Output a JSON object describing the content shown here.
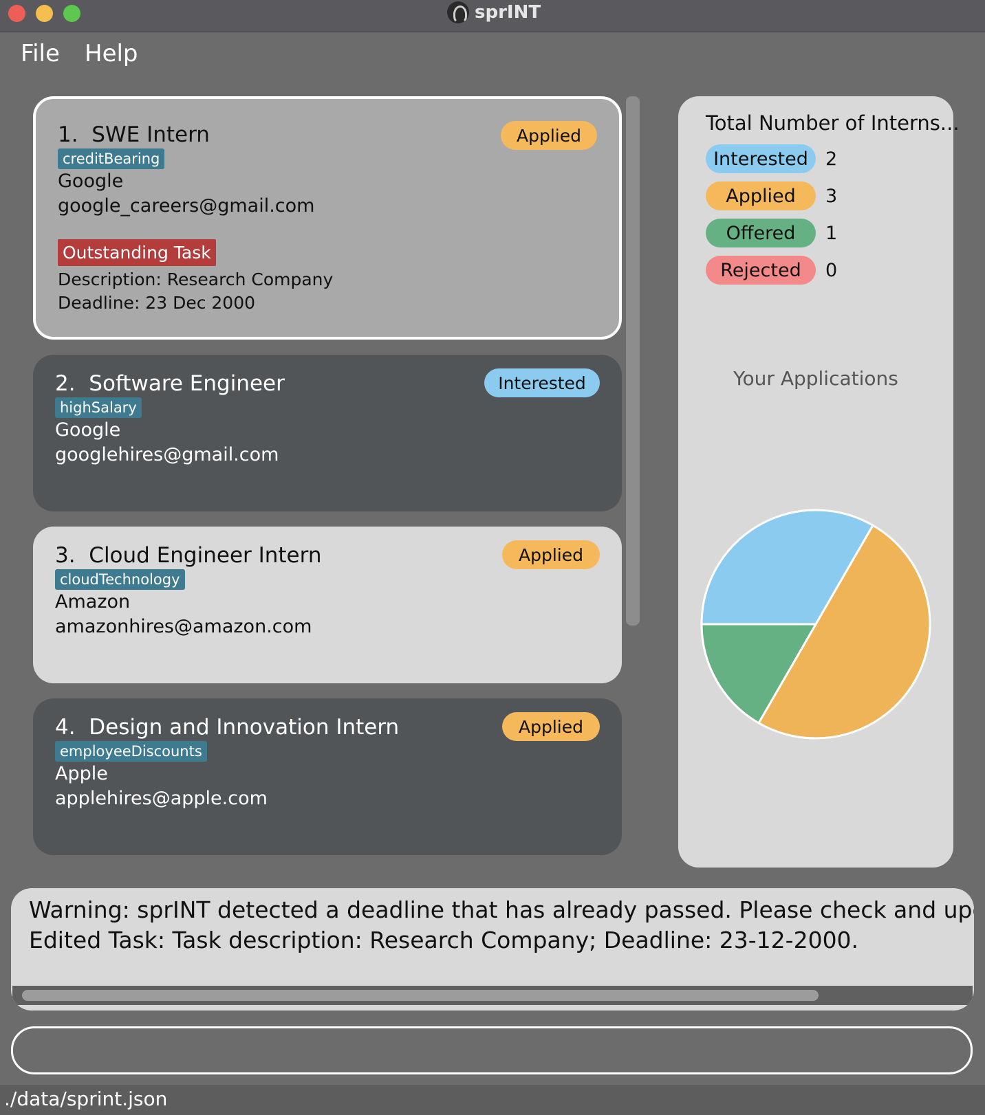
{
  "window": {
    "title": "sprINT"
  },
  "menu": {
    "file": "File",
    "help": "Help"
  },
  "applications": [
    {
      "index": "1.",
      "role": "SWE Intern",
      "tag": "creditBearing",
      "company": "Google",
      "email": "google_careers@gmail.com",
      "status": "Applied",
      "task": {
        "badge": "Outstanding Task",
        "description": "Description: Research Company",
        "deadline": "Deadline: 23 Dec 2000"
      }
    },
    {
      "index": "2.",
      "role": "Software Engineer",
      "tag": "highSalary",
      "company": "Google",
      "email": "googlehires@gmail.com",
      "status": "Interested"
    },
    {
      "index": "3.",
      "role": "Cloud Engineer Intern",
      "tag": "cloudTechnology",
      "company": "Amazon",
      "email": "amazonhires@amazon.com",
      "status": "Applied"
    },
    {
      "index": "4.",
      "role": "Design and Innovation Intern",
      "tag": "employeeDiscounts",
      "company": "Apple",
      "email": "applehires@apple.com",
      "status": "Applied"
    }
  ],
  "stats": {
    "title": "Total Number of Interns...",
    "rows": [
      {
        "label": "Interested",
        "count": "2"
      },
      {
        "label": "Applied",
        "count": "3"
      },
      {
        "label": "Offered",
        "count": "1"
      },
      {
        "label": "Rejected",
        "count": "0"
      }
    ],
    "chart_title": "Your Applications"
  },
  "chart_data": {
    "type": "pie",
    "title": "Your Applications",
    "categories": [
      "Interested",
      "Applied",
      "Offered",
      "Rejected"
    ],
    "values": [
      2,
      3,
      1,
      0
    ],
    "colors": [
      "#8ccbf0",
      "#f0b458",
      "#65b184",
      "#f4898a"
    ]
  },
  "result": {
    "line1": "Warning: sprINT detected a deadline that has already passed. Please check and update task det",
    "line2": "Edited Task: Task description: Research Company; Deadline: 23-12-2000."
  },
  "command": {
    "value": "",
    "placeholder": ""
  },
  "statusbar": {
    "path": "./data/sprint.json"
  }
}
